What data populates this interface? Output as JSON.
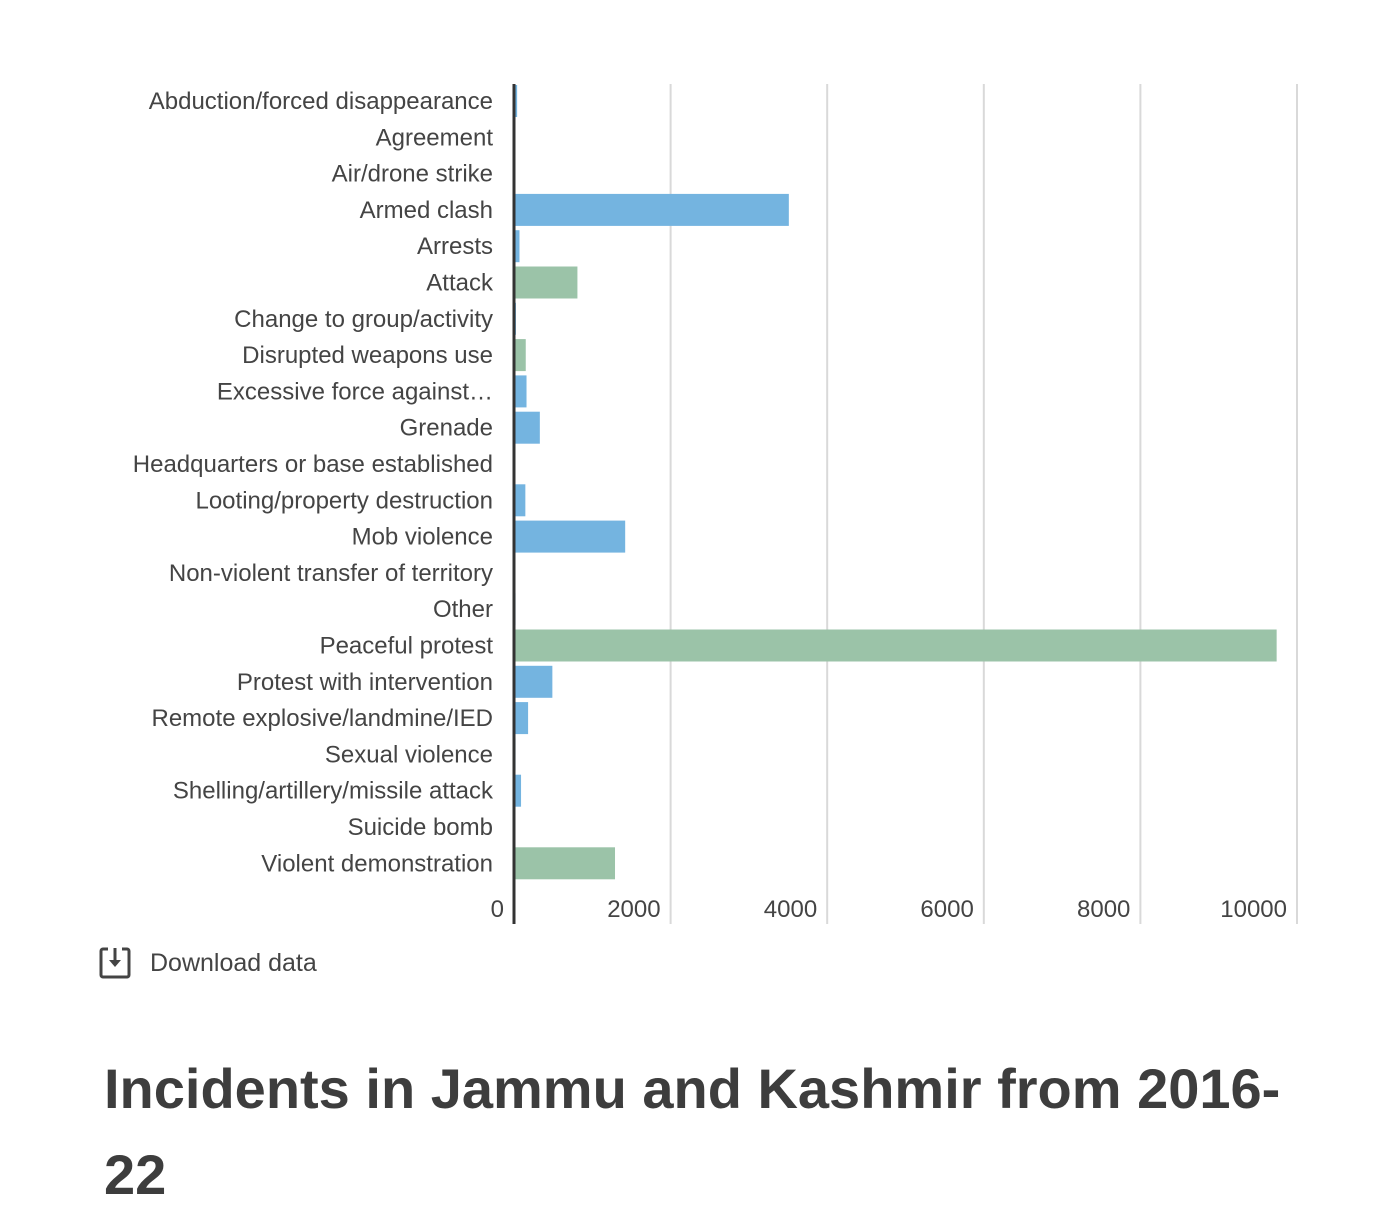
{
  "chart_data": {
    "type": "bar",
    "orientation": "horizontal",
    "categories": [
      "Abduction/forced disappearance",
      "Agreement",
      "Air/drone strike",
      "Armed clash",
      "Arrests",
      "Attack",
      "Change to group/activity",
      "Disrupted weapons use",
      "Excessive force against…",
      "Grenade",
      "Headquarters or base established",
      "Looting/property destruction",
      "Mob violence",
      "Non-violent transfer of territory",
      "Other",
      "Peaceful protest",
      "Protest with intervention",
      "Remote explosive/landmine/IED",
      "Sexual violence",
      "Shelling/artillery/missile attack",
      "Suicide bomb",
      "Violent demonstration"
    ],
    "values": [
      40,
      2,
      3,
      3510,
      70,
      810,
      25,
      150,
      160,
      330,
      4,
      145,
      1420,
      3,
      20,
      9740,
      490,
      180,
      20,
      90,
      2,
      1290
    ],
    "bar_colors": [
      "#74b4e0",
      "#74b4e0",
      "#74b4e0",
      "#74b4e0",
      "#74b4e0",
      "#9bc3a8",
      "#74b4e0",
      "#9bc3a8",
      "#74b4e0",
      "#74b4e0",
      "#74b4e0",
      "#74b4e0",
      "#74b4e0",
      "#74b4e0",
      "#74b4e0",
      "#9bc3a8",
      "#74b4e0",
      "#74b4e0",
      "#74b4e0",
      "#74b4e0",
      "#74b4e0",
      "#9bc3a8"
    ],
    "xlim": [
      0,
      10000
    ],
    "xticks": [
      0,
      2000,
      4000,
      6000,
      8000,
      10000
    ],
    "grid": true,
    "gridline_color": "#d9d9d9",
    "axis_color": "#333333"
  },
  "download": {
    "label": "Download data",
    "icon": "download-icon"
  },
  "title": "Incidents in Jammu and Kashmir from 2016-22"
}
